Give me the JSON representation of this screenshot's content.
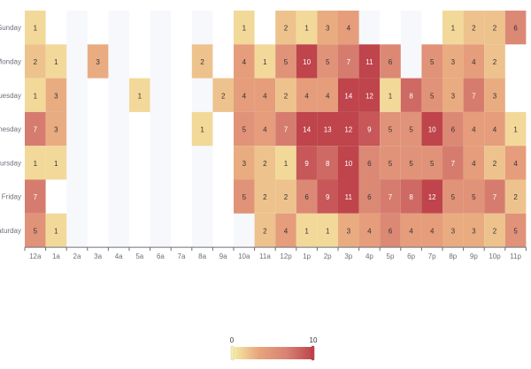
{
  "chart_data": {
    "type": "heatmap",
    "title": "",
    "xlabel": "",
    "ylabel": "",
    "hours": [
      "12a",
      "1a",
      "2a",
      "3a",
      "4a",
      "5a",
      "6a",
      "7a",
      "8a",
      "9a",
      "10a",
      "11a",
      "12p",
      "1p",
      "2p",
      "3p",
      "4p",
      "5p",
      "6p",
      "7p",
      "8p",
      "9p",
      "10p",
      "11p"
    ],
    "days": [
      "Sunday",
      "Monday",
      "Tuesday",
      "Wednesday",
      "Thursday",
      "Friday",
      "Saturday"
    ],
    "values": [
      [
        1,
        null,
        null,
        null,
        null,
        null,
        null,
        null,
        null,
        null,
        1,
        null,
        2,
        1,
        3,
        4,
        null,
        null,
        null,
        null,
        1,
        2,
        2,
        6
      ],
      [
        2,
        1,
        null,
        3,
        null,
        null,
        null,
        null,
        2,
        null,
        4,
        1,
        5,
        10,
        5,
        7,
        11,
        6,
        null,
        5,
        3,
        4,
        2,
        null
      ],
      [
        1,
        3,
        null,
        null,
        null,
        1,
        null,
        null,
        null,
        2,
        4,
        4,
        2,
        4,
        4,
        14,
        12,
        1,
        8,
        5,
        3,
        7,
        3,
        null
      ],
      [
        7,
        3,
        null,
        null,
        null,
        null,
        null,
        null,
        1,
        null,
        5,
        4,
        7,
        14,
        13,
        12,
        9,
        5,
        5,
        10,
        6,
        4,
        4,
        1
      ],
      [
        1,
        1,
        null,
        null,
        null,
        null,
        null,
        null,
        null,
        null,
        3,
        2,
        1,
        9,
        8,
        10,
        6,
        5,
        5,
        5,
        7,
        4,
        2,
        4
      ],
      [
        7,
        null,
        null,
        null,
        null,
        null,
        null,
        null,
        null,
        null,
        5,
        2,
        2,
        6,
        9,
        11,
        6,
        7,
        8,
        12,
        5,
        5,
        7,
        2
      ],
      [
        5,
        1,
        null,
        null,
        null,
        null,
        null,
        null,
        null,
        null,
        null,
        2,
        4,
        1,
        1,
        3,
        4,
        6,
        4,
        4,
        3,
        3,
        2,
        5
      ]
    ],
    "visual_map": {
      "min": 0,
      "max": 10,
      "min_label": "0",
      "max_label": "10",
      "colors": [
        "#f6efa6",
        "#e8a47d",
        "#d88273",
        "#bf444c"
      ]
    },
    "empty_band_color": "#f7f8fc",
    "grid": false,
    "legend": "bottom-center"
  }
}
